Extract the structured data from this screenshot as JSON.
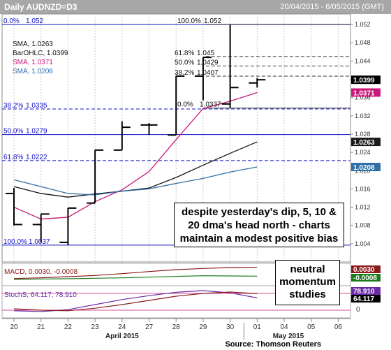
{
  "header": {
    "title": "Daily AUDNZD=D3",
    "date_range": "20/04/2015 - 6/05/2015 (GMT)"
  },
  "legend": [
    {
      "label": "SMA, 1.0263",
      "color": "#111111"
    },
    {
      "label": "BarOHLC, 1.0399",
      "color": "#111111"
    },
    {
      "label": "SMA, 1.0371",
      "color": "#c8187a"
    },
    {
      "label": "SMA, 1.0208",
      "color": "#2f6fa6"
    }
  ],
  "price_tags": [
    {
      "text": "1.0399",
      "value": 1.0399,
      "bg": "#000000",
      "fg": "#ffffff"
    },
    {
      "text": "1.0371",
      "value": 1.0371,
      "bg": "#c8187a",
      "fg": "#ffffff"
    },
    {
      "text": "1.0263",
      "value": 1.0263,
      "bg": "#1a1a1a",
      "fg": "#ffffff"
    },
    {
      "text": "1.0208",
      "value": 1.0208,
      "bg": "#2f6fa6",
      "fg": "#ffffff"
    }
  ],
  "fib_left": [
    {
      "text": "0.0%",
      "value_text": "1.052",
      "value": 1.052,
      "style": "solid"
    },
    {
      "text": "38.2%",
      "value_text": "1.0335",
      "value": 1.0335,
      "style": "dashed"
    },
    {
      "text": "50.0%",
      "value_text": "1.0279",
      "value": 1.0279,
      "style": "solid"
    },
    {
      "text": "61.8%",
      "value_text": "1.0222",
      "value": 1.0222,
      "style": "dashed"
    },
    {
      "text": "100.0%",
      "value_text": "1.0037",
      "value": 1.0037,
      "style": "solid"
    }
  ],
  "fib_right": [
    {
      "text": "100.0%",
      "value_text": "1.052",
      "value": 1.052
    },
    {
      "text": "61.8%",
      "value_text": "1.045",
      "value": 1.045
    },
    {
      "text": "50.0%",
      "value_text": "1.0429",
      "value": 1.0429
    },
    {
      "text": "38.2%",
      "value_text": "1.0407",
      "value": 1.0407
    },
    {
      "text": "0.0%",
      "value_text": "1.0337",
      "value": 1.0337
    }
  ],
  "callout_main": "despite yesterday's dip, 5, 10 & 20 dma's head north - charts maintain a modest positive bias",
  "callout_momentum": "neutral momentum studies",
  "macd": {
    "label": "MACD, 0.0030, -0.0008",
    "tag1": "0.0030",
    "tag2": "-0.0008"
  },
  "stoch": {
    "label": "StochS, 64.117, 78.910",
    "tag1": "78.910",
    "tag2": "64.117",
    "zero": "0"
  },
  "x_axis": {
    "days": [
      "20",
      "21",
      "22",
      "23",
      "24",
      "27",
      "28",
      "29",
      "30",
      "01",
      "04",
      "05",
      "06"
    ],
    "months": [
      "April 2015",
      "May 2015"
    ]
  },
  "source": "Source: Thomson Reuters",
  "chart_data": {
    "type": "bar",
    "title": "Daily AUDNZD=D3",
    "ylim": [
      1.0,
      1.054
    ],
    "y_ticks": [
      1.004,
      1.008,
      1.012,
      1.016,
      1.02,
      1.024,
      1.028,
      1.032,
      1.036,
      1.04,
      1.044,
      1.048,
      1.052
    ],
    "categories": [
      "20",
      "21",
      "22",
      "23",
      "24",
      "27",
      "28",
      "29",
      "30",
      "01"
    ],
    "ohlc": [
      {
        "o": 1.015,
        "h": 1.0162,
        "l": 1.008,
        "c": 1.0082
      },
      {
        "o": 1.0082,
        "h": 1.0105,
        "l": 1.0043,
        "c": 1.0105
      },
      {
        "o": 1.0043,
        "h": 1.0118,
        "l": 1.0037,
        "c": 1.0118
      },
      {
        "o": 1.0129,
        "h": 1.0245,
        "l": 1.0129,
        "c": 1.0245
      },
      {
        "o": 1.0245,
        "h": 1.0308,
        "l": 1.0245,
        "c": 1.0295
      },
      {
        "o": 1.03,
        "h": 1.0304,
        "l": 1.0278,
        "c": 1.03
      },
      {
        "o": 1.0278,
        "h": 1.0407,
        "l": 1.0278,
        "c": 1.0407
      },
      {
        "o": 1.0407,
        "h": 1.0448,
        "l": 1.0354,
        "c": 1.0448
      },
      {
        "o": 1.0346,
        "h": 1.052,
        "l": 1.0337,
        "c": 1.0382
      },
      {
        "o": 1.0392,
        "h": 1.0403,
        "l": 1.0382,
        "c": 1.0399
      }
    ],
    "series": [
      {
        "name": "SMA, 1.0371",
        "color": "#c8187a",
        "x": [
          20,
          21,
          22,
          23,
          24,
          27,
          28,
          29,
          30,
          1
        ],
        "values": [
          1.012,
          1.0094,
          1.0098,
          1.0132,
          1.0158,
          1.0198,
          1.0268,
          1.0336,
          1.0352,
          1.0371
        ]
      },
      {
        "name": "SMA, 1.0263",
        "color": "#111111",
        "x": [
          20,
          21,
          22,
          23,
          24,
          27,
          28,
          29,
          30,
          1
        ],
        "values": [
          1.0165,
          1.015,
          1.0142,
          1.0149,
          1.0155,
          1.0162,
          1.0185,
          1.0212,
          1.0238,
          1.0263
        ]
      },
      {
        "name": "SMA, 1.0208",
        "color": "#2f6fa6",
        "x": [
          20,
          21,
          22,
          23,
          24,
          27,
          28,
          29,
          30,
          1
        ],
        "values": [
          1.018,
          1.0165,
          1.015,
          1.0147,
          1.0155,
          1.016,
          1.0172,
          1.0183,
          1.0197,
          1.0208
        ]
      }
    ],
    "macd": {
      "macd": [
        -0.0018,
        -0.0015,
        -0.001,
        -0.0005,
        0.0003,
        0.0012,
        0.002,
        0.0025,
        0.0029,
        0.003
      ],
      "signal": [
        -0.0022,
        -0.002,
        -0.0019,
        -0.0017,
        -0.0015,
        -0.0012,
        -0.0009,
        -0.0006,
        -0.0007,
        -0.0008
      ]
    },
    "stoch": {
      "k": [
        18,
        15,
        22,
        40,
        58,
        72,
        84,
        90,
        82,
        64
      ],
      "d": [
        25,
        20,
        18,
        27,
        40,
        55,
        70,
        80,
        85,
        79
      ]
    }
  }
}
